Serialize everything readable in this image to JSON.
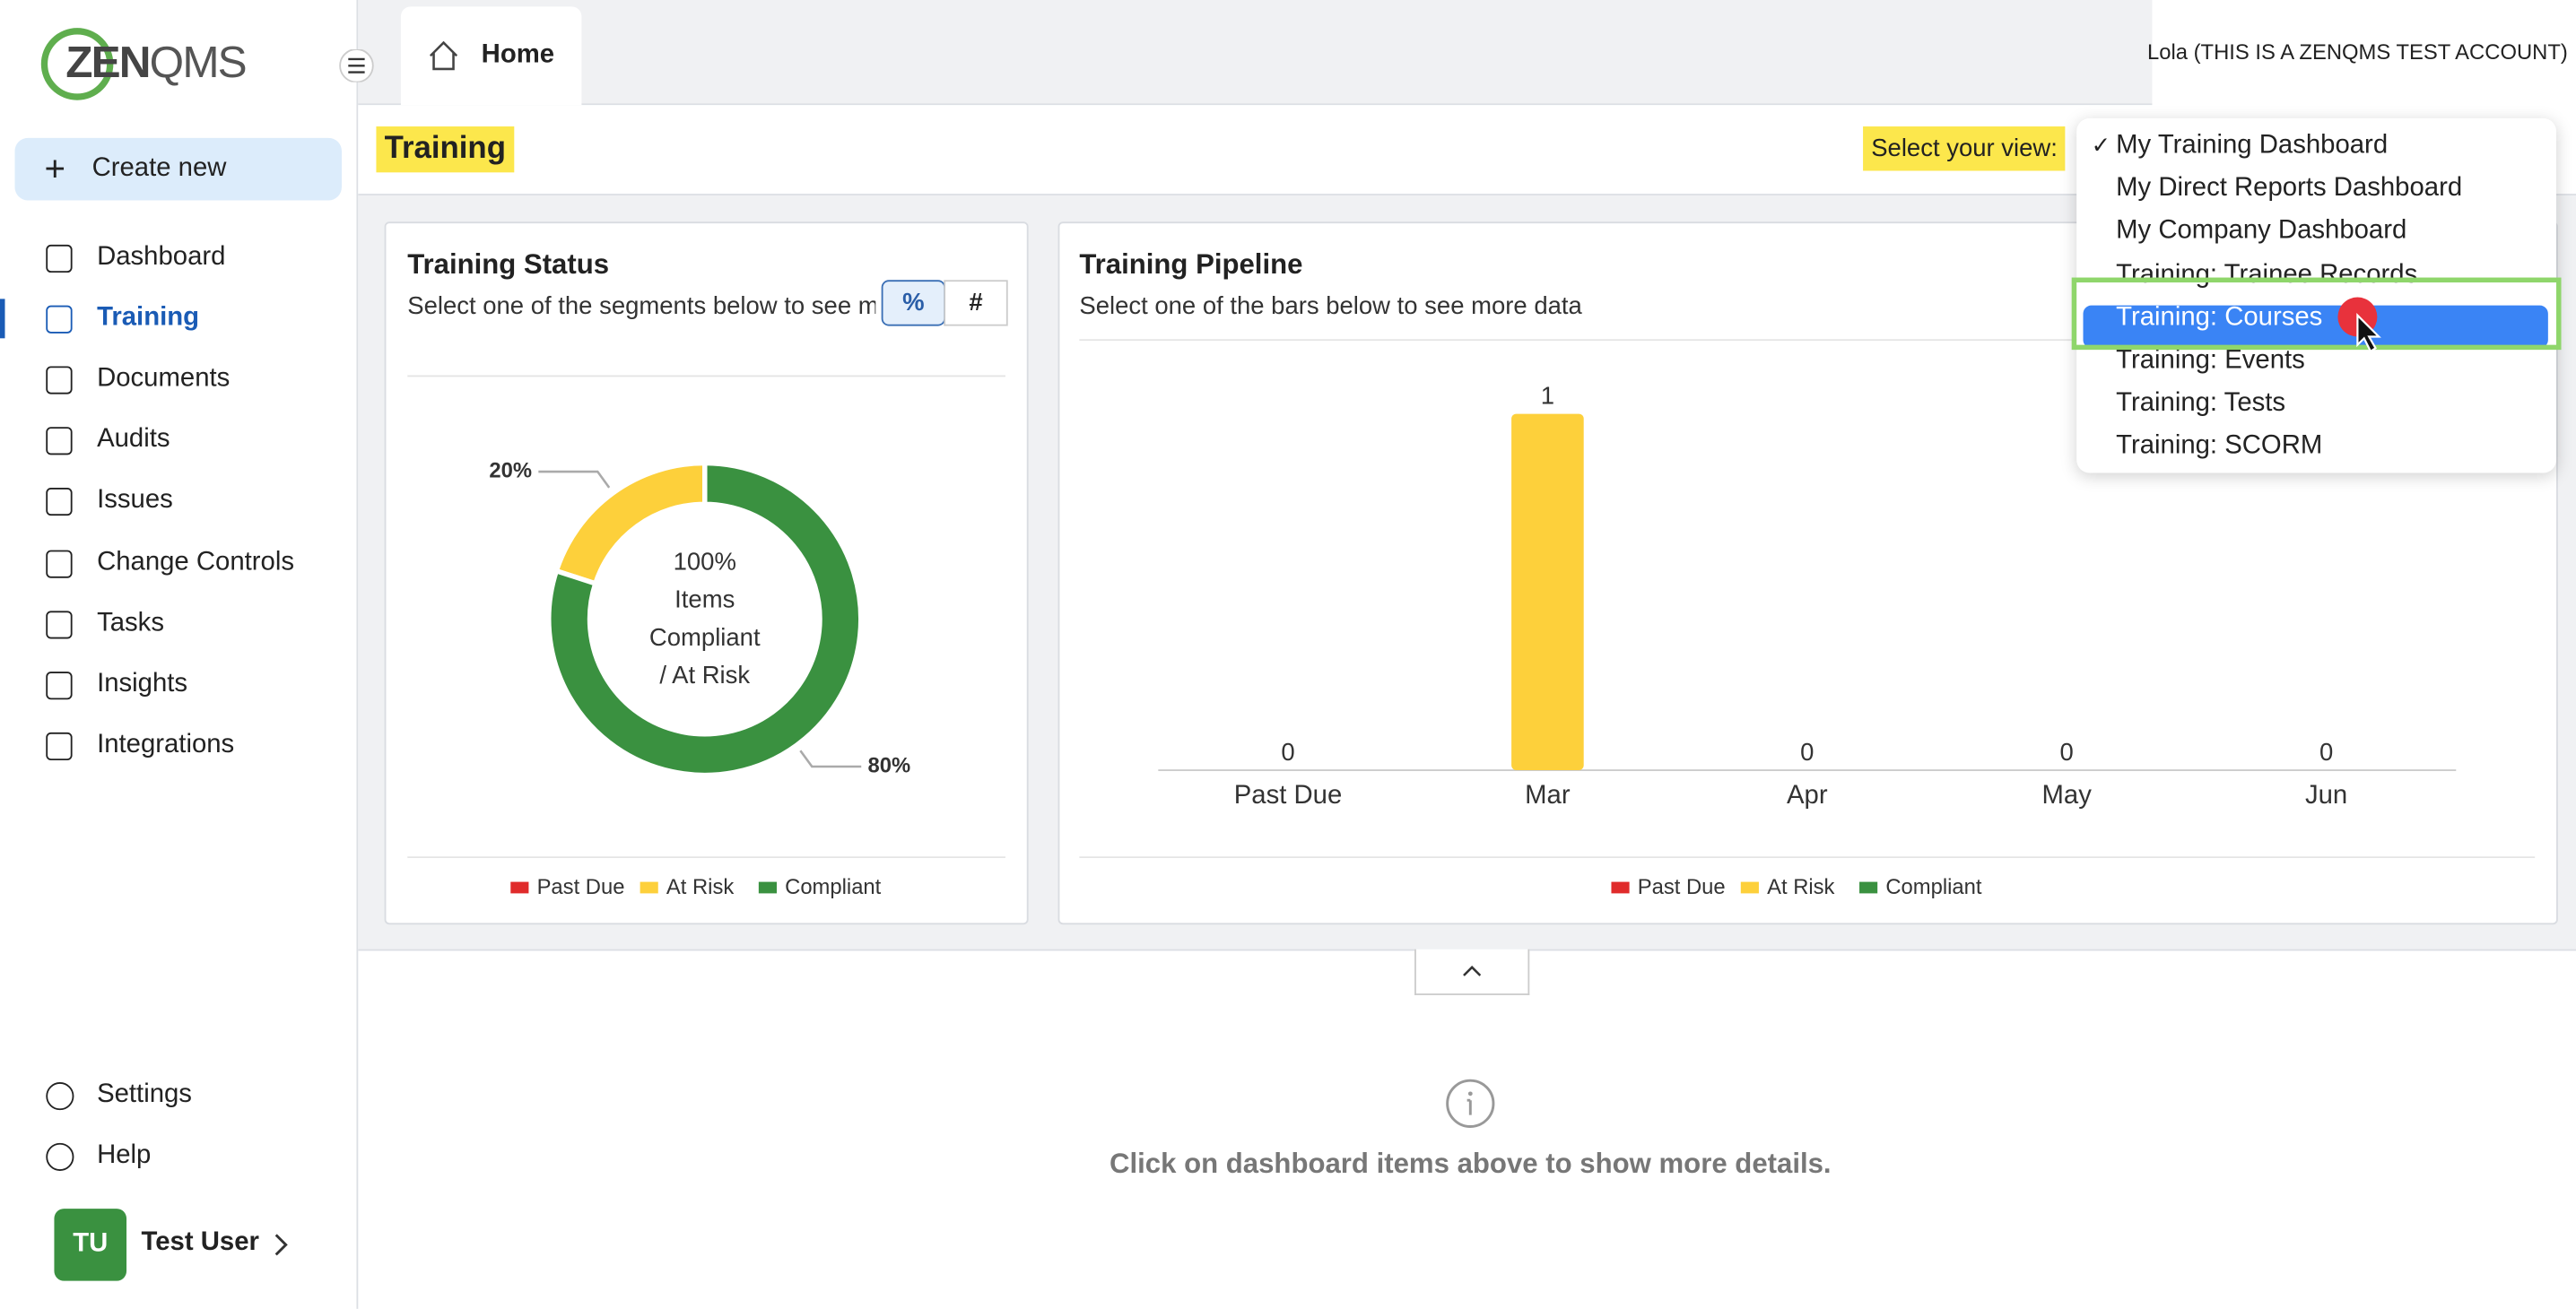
{
  "logo": {
    "bold": "ZEN",
    "light": "QMS"
  },
  "sidebar": {
    "create": "Create new",
    "nav": [
      "Dashboard",
      "Training",
      "Documents",
      "Audits",
      "Issues",
      "Change Controls",
      "Tasks",
      "Insights",
      "Integrations"
    ],
    "active": 1,
    "bottom": [
      "Settings",
      "Help"
    ],
    "user": {
      "initials": "TU",
      "name": "Test User"
    }
  },
  "tab": "Home",
  "account": "Lola (THIS IS A ZENQMS TEST ACCOUNT)",
  "page_title": "Training",
  "view_label": "Select your view:",
  "dropdown": {
    "check": "✓",
    "checked": 0,
    "highlighted": 4,
    "options": [
      "My Training Dashboard",
      "My Direct Reports Dashboard",
      "My Company Dashboard",
      "Training: Trainee Records",
      "Training: Courses",
      "Training: Events",
      "Training: Tests",
      "Training: SCORM"
    ]
  },
  "chart_data": [
    {
      "type": "pie",
      "title": "Training Status",
      "subtitle": "Select one of the segments below to see more data",
      "toggle": [
        "%",
        "#"
      ],
      "categories": [
        "Past Due",
        "At Risk",
        "Compliant"
      ],
      "values": [
        0,
        20,
        80
      ],
      "value_labels": [
        null,
        "20%",
        "80%"
      ],
      "colors": [
        "#e02b2b",
        "#fdd03b",
        "#3a9140"
      ],
      "center_text": [
        "100%",
        "Items",
        "Compliant",
        "/ At Risk"
      ]
    },
    {
      "type": "bar",
      "title": "Training Pipeline",
      "subtitle": "Select one of the bars below to see more data",
      "categories": [
        "Past Due",
        "Mar",
        "Apr",
        "May",
        "Jun"
      ],
      "values": [
        0,
        1,
        0,
        0,
        0
      ],
      "color": "#fdd03b",
      "ylim": [
        0,
        1
      ],
      "legend": [
        {
          "name": "Past Due",
          "color": "#e02b2b"
        },
        {
          "name": "At Risk",
          "color": "#fdd03b"
        },
        {
          "name": "Compliant",
          "color": "#3a9140"
        }
      ]
    }
  ],
  "detail": "Click on dashboard items above to show more details."
}
